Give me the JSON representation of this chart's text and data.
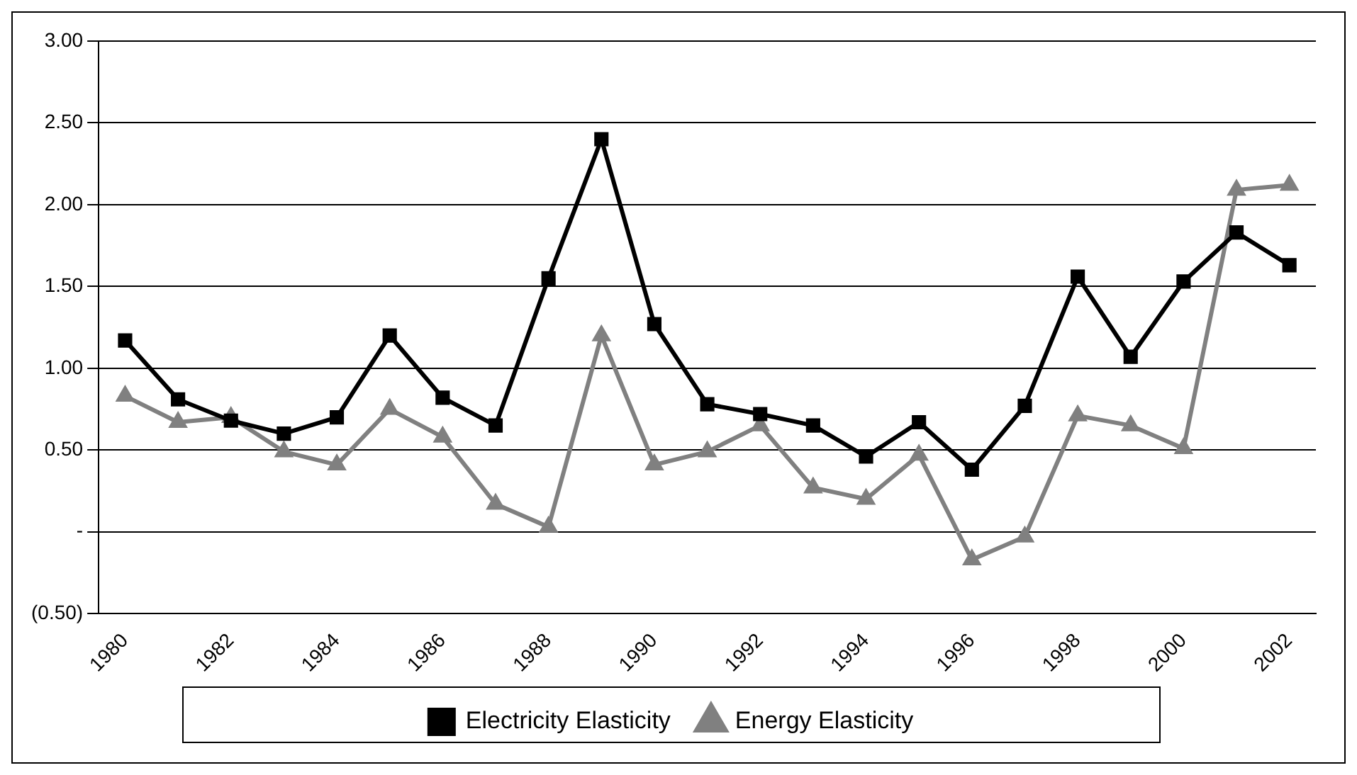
{
  "chart_data": {
    "type": "line",
    "categories": [
      "1980",
      null,
      "1982",
      null,
      "1984",
      null,
      "1986",
      null,
      "1988",
      null,
      "1990",
      null,
      "1992",
      null,
      "1994",
      null,
      "1996",
      null,
      "1998",
      null,
      "2000",
      null,
      "2002"
    ],
    "series": [
      {
        "name": "Electricity Elasticity",
        "color": "#000000",
        "marker": "square",
        "values": [
          1.17,
          0.81,
          0.68,
          0.6,
          0.7,
          1.2,
          0.82,
          0.65,
          1.55,
          2.4,
          1.27,
          0.78,
          0.72,
          0.65,
          0.46,
          0.67,
          0.38,
          0.77,
          1.56,
          1.07,
          1.53,
          1.83,
          1.63
        ]
      },
      {
        "name": "Energy Elasticity",
        "color": "#808080",
        "marker": "triangle",
        "values": [
          0.83,
          0.67,
          0.7,
          0.49,
          0.41,
          0.75,
          0.58,
          0.17,
          0.03,
          1.2,
          0.41,
          0.49,
          0.65,
          0.27,
          0.2,
          0.47,
          -0.17,
          -0.03,
          0.71,
          0.65,
          0.51,
          2.09,
          2.12
        ]
      }
    ],
    "ylim": [
      -0.5,
      3
    ],
    "yticks": [
      {
        "value": -0.5,
        "label": "(0.50)"
      },
      {
        "value": 0,
        "label": "-"
      },
      {
        "value": 0.5,
        "label": "0.50"
      },
      {
        "value": 1,
        "label": "1.00"
      },
      {
        "value": 1.5,
        "label": "1.50"
      },
      {
        "value": 2,
        "label": "2.00"
      },
      {
        "value": 2.5,
        "label": "2.50"
      },
      {
        "value": 3,
        "label": "3.00"
      }
    ],
    "grid": "y",
    "legend": "bottom",
    "line_style": "solid"
  }
}
